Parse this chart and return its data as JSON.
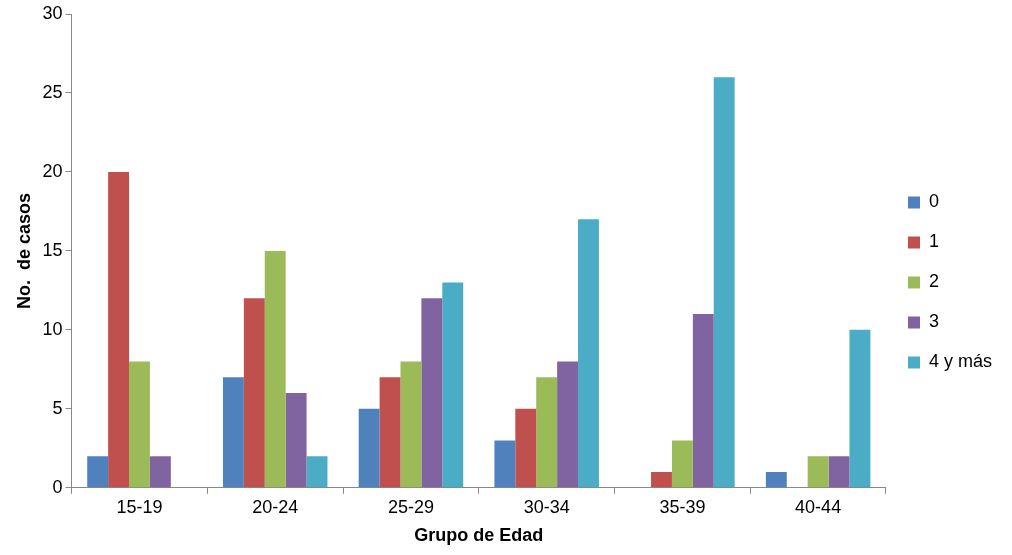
{
  "chart_data": {
    "type": "bar",
    "xlabel": "Grupo de Edad",
    "ylabel": "No.  de casos",
    "categories": [
      "15-19",
      "20-24",
      "25-29",
      "30-34",
      "35-39",
      "40-44"
    ],
    "series": [
      {
        "name": "0",
        "color": "#4f81bd",
        "values": [
          2,
          7,
          5,
          3,
          0,
          1
        ]
      },
      {
        "name": "1",
        "color": "#c0504d",
        "values": [
          20,
          12,
          7,
          5,
          1,
          0
        ]
      },
      {
        "name": "2",
        "color": "#9bbb59",
        "values": [
          8,
          15,
          8,
          7,
          3,
          2
        ]
      },
      {
        "name": "3",
        "color": "#8064a2",
        "values": [
          2,
          6,
          12,
          8,
          11,
          2
        ]
      },
      {
        "name": "4 y más",
        "color": "#4bacc6",
        "values": [
          0,
          2,
          13,
          17,
          26,
          10
        ]
      }
    ],
    "ylim": [
      0,
      30
    ],
    "yticks": [
      0,
      5,
      10,
      15,
      20,
      25,
      30
    ],
    "grid": false,
    "legend": "right"
  }
}
